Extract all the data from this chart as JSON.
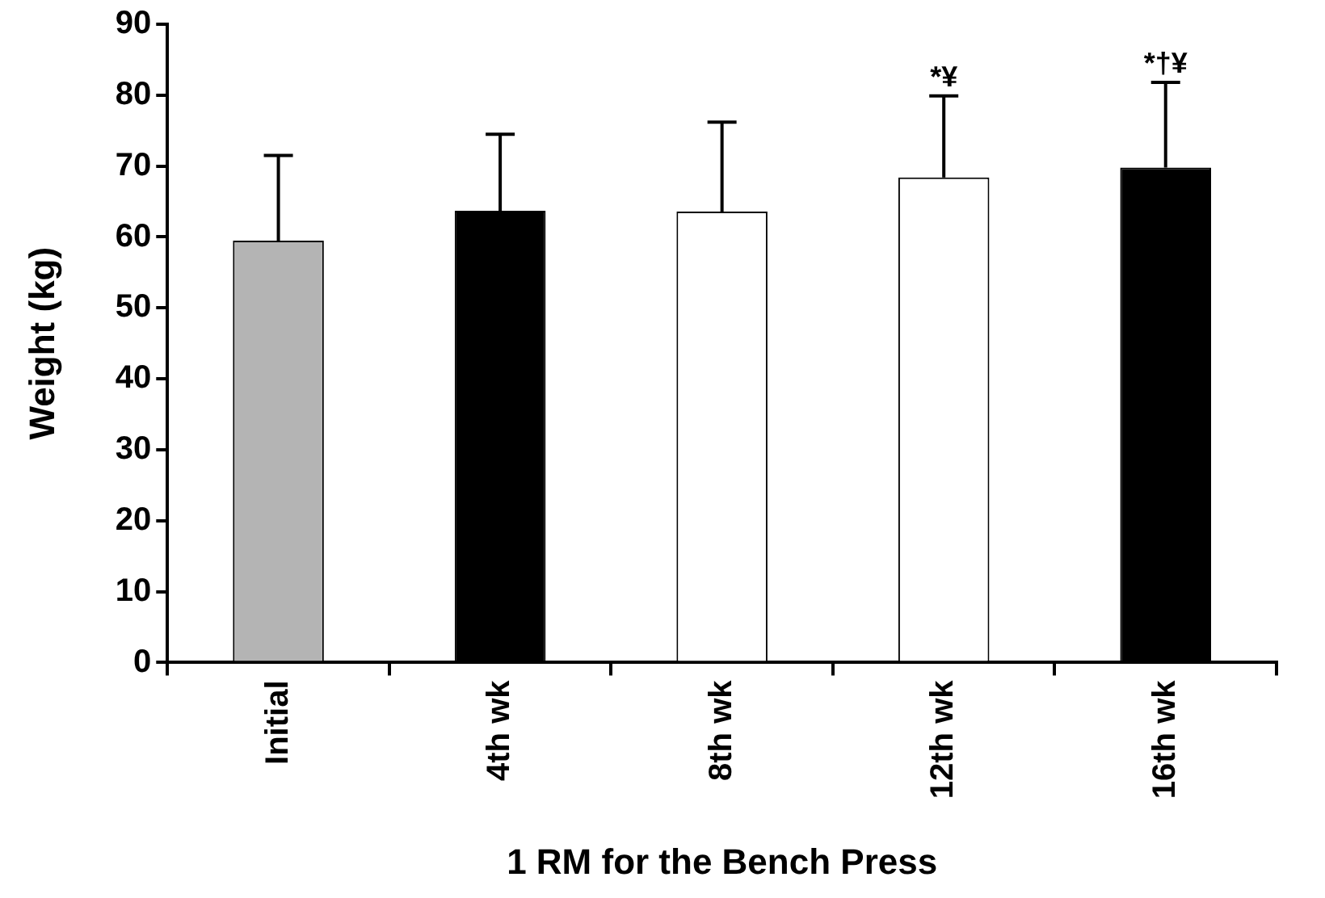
{
  "chart_data": {
    "type": "bar",
    "xlabel": "1 RM for the Bench Press",
    "ylabel": "Weight (kg)",
    "categories": [
      "Initial",
      "4th wk",
      "8th wk",
      "12th wk",
      "16th wk"
    ],
    "values": [
      59.5,
      63.7,
      63.6,
      68.4,
      69.8
    ],
    "colors": [
      "#b4b4b4",
      "#000000",
      "#ffffff",
      "#ffffff",
      "#000000"
    ],
    "errors": [
      [
        59.5,
        71.5
      ],
      [
        63.7,
        74.5
      ],
      [
        63.6,
        76.2
      ],
      [
        68.4,
        79.9
      ],
      [
        69.8,
        81.8
      ]
    ],
    "ylim": [
      0,
      90
    ],
    "yticks": [
      0,
      10,
      20,
      30,
      40,
      50,
      60,
      70,
      80,
      90
    ],
    "grid": false,
    "legend": false,
    "annotations": [
      {
        "text": "*¥",
        "x": "12th wk",
        "y": 79.9
      },
      {
        "text": "*†¥",
        "x": "16th wk",
        "y": 81.8
      }
    ]
  }
}
